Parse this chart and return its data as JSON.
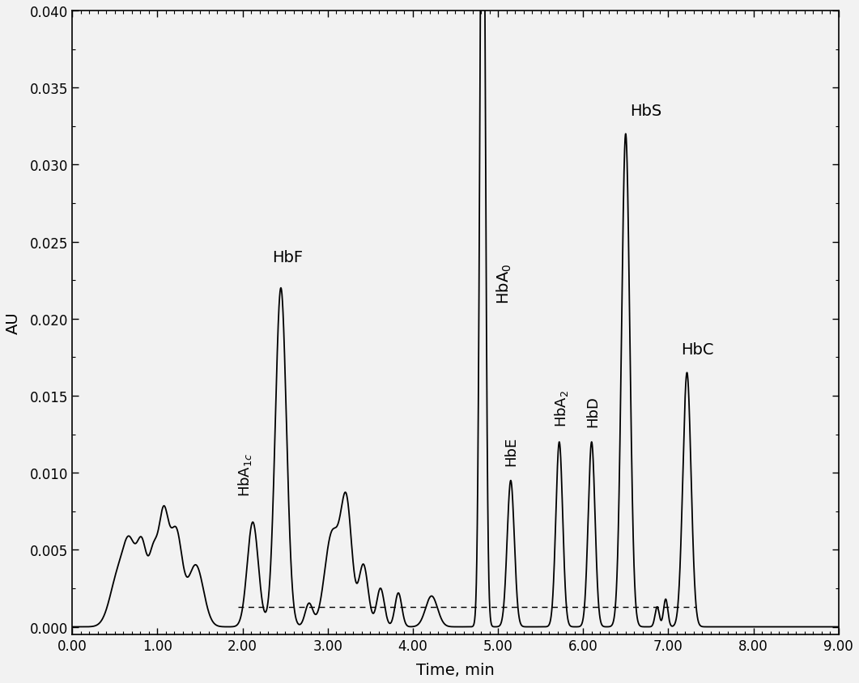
{
  "xlabel": "Time, min",
  "ylabel": "AU",
  "xlim": [
    0.0,
    9.0
  ],
  "ylim": [
    -0.0005,
    0.04
  ],
  "yticks": [
    0.0,
    0.005,
    0.01,
    0.015,
    0.02,
    0.025,
    0.03,
    0.035,
    0.04
  ],
  "xticks": [
    0.0,
    1.0,
    2.0,
    3.0,
    4.0,
    5.0,
    6.0,
    7.0,
    8.0,
    9.0
  ],
  "background_color": "#f2f2f2",
  "plot_bg_color": "#f2f2f2",
  "line_color": "#000000",
  "dashed_baseline_color": "#000000",
  "dashed_baseline_y": 0.0013,
  "dashed_baseline_x_start": 1.95,
  "dashed_baseline_x_end": 7.32,
  "figsize": [
    10.61,
    8.45
  ],
  "dpi": 100
}
